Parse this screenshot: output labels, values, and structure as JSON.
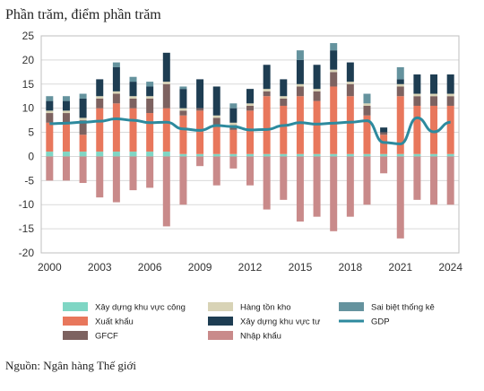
{
  "chart_data": {
    "type": "bar",
    "subtype": "stacked-with-line",
    "ylabel": "Phần trăm, điểm phần trăm",
    "source": "Nguồn: Ngân hàng Thế giới",
    "ylim": [
      -20,
      25
    ],
    "yticks": [
      -20,
      -15,
      -10,
      -5,
      0,
      5,
      10,
      15,
      20,
      25
    ],
    "x": [
      2000,
      2001,
      2002,
      2003,
      2004,
      2005,
      2006,
      2007,
      2008,
      2009,
      2010,
      2011,
      2012,
      2013,
      2014,
      2015,
      2016,
      2017,
      2018,
      2019,
      2020,
      2021,
      2022,
      2023,
      2024
    ],
    "xticks": [
      2000,
      2003,
      2006,
      2009,
      2012,
      2015,
      2018,
      2021,
      2024
    ],
    "grid": true,
    "legend_position": "bottom",
    "series": [
      {
        "name": "Xây dựng khu vực công",
        "key": "public",
        "color": "#7fd6c4",
        "values": [
          1,
          1,
          1,
          1,
          1,
          1,
          1,
          1,
          0.5,
          0.5,
          0.5,
          0.5,
          0.5,
          0.5,
          0.5,
          0.5,
          0.5,
          0.5,
          0.5,
          0.5,
          0.5,
          0.5,
          0.5,
          0.5,
          0.5
        ]
      },
      {
        "name": "Xuất khẩu",
        "key": "exports",
        "color": "#e8775c",
        "values": [
          6,
          6,
          3.5,
          9,
          10,
          9,
          8,
          9,
          8,
          9,
          6,
          5,
          9,
          12,
          10,
          12,
          11,
          14,
          12,
          8,
          4,
          12,
          10,
          10,
          10
        ]
      },
      {
        "name": "GFCF",
        "key": "gfcf",
        "color": "#7d6260",
        "values": [
          2,
          2,
          3,
          2,
          2,
          2,
          3,
          5,
          1,
          0.5,
          1.5,
          1,
          1,
          1,
          1.5,
          2,
          2,
          3,
          2.5,
          2,
          0.5,
          2,
          2,
          2,
          2
        ]
      },
      {
        "name": "Hàng tồn kho",
        "key": "inventory",
        "color": "#d8d3b6",
        "values": [
          0.5,
          0.5,
          0.5,
          0.5,
          0.5,
          0.5,
          0.5,
          0.5,
          0.5,
          0,
          0.5,
          0.5,
          0.5,
          0.5,
          0.5,
          0.5,
          0.5,
          0.5,
          0.5,
          0.5,
          0,
          0.5,
          0.5,
          0.5,
          0.5
        ]
      },
      {
        "name": "Xây dựng khu vực tư",
        "key": "private",
        "color": "#1e3d52",
        "values": [
          2,
          2,
          4,
          3.5,
          5,
          3,
          2,
          6,
          4,
          6,
          6,
          3,
          3,
          5,
          3.5,
          5,
          5,
          4,
          4,
          0,
          1,
          1,
          4,
          4,
          4
        ]
      },
      {
        "name": "Nhập khẩu",
        "key": "imports",
        "color": "#c98a8a",
        "values": [
          -5,
          -5,
          -5.5,
          -8.5,
          -9.5,
          -7,
          -6.5,
          -14.5,
          -10,
          -2,
          -6,
          -2.5,
          -6,
          -11,
          -9,
          -13.5,
          -12.5,
          -15.5,
          -12.5,
          -10,
          -3.5,
          -17,
          -9,
          -10,
          -10
        ]
      },
      {
        "name": "Sai biệt thống kê",
        "key": "discrepancy",
        "color": "#65939e",
        "values": [
          1,
          1,
          1,
          0,
          1,
          1,
          1,
          0,
          0.5,
          0,
          0,
          1,
          0,
          0,
          0,
          2,
          0,
          1.5,
          0,
          2,
          0,
          2.5,
          0,
          0,
          0
        ]
      },
      {
        "name": "GDP",
        "key": "gdp",
        "color": "#2d8a9e",
        "type": "line",
        "values": [
          6.8,
          6.9,
          7.1,
          7.3,
          7.8,
          7.5,
          7,
          7.1,
          5.7,
          5.4,
          6.4,
          6.2,
          5.5,
          5.6,
          6.4,
          7,
          6.7,
          6.9,
          7.1,
          7.4,
          2.9,
          2.6,
          8,
          5.1,
          7.1
        ]
      }
    ],
    "legend": [
      {
        "label": "Xây dựng khu vực công",
        "key": "public"
      },
      {
        "label": "Xuất khẩu",
        "key": "exports"
      },
      {
        "label": "GFCF",
        "key": "gfcf"
      },
      {
        "label": "Hàng tồn kho",
        "key": "inventory"
      },
      {
        "label": "Xây dựng khu vực tư",
        "key": "private"
      },
      {
        "label": "Nhập khẩu",
        "key": "imports"
      },
      {
        "label": "Sai biệt thống kê",
        "key": "discrepancy"
      },
      {
        "label": "GDP",
        "key": "gdp"
      }
    ]
  }
}
